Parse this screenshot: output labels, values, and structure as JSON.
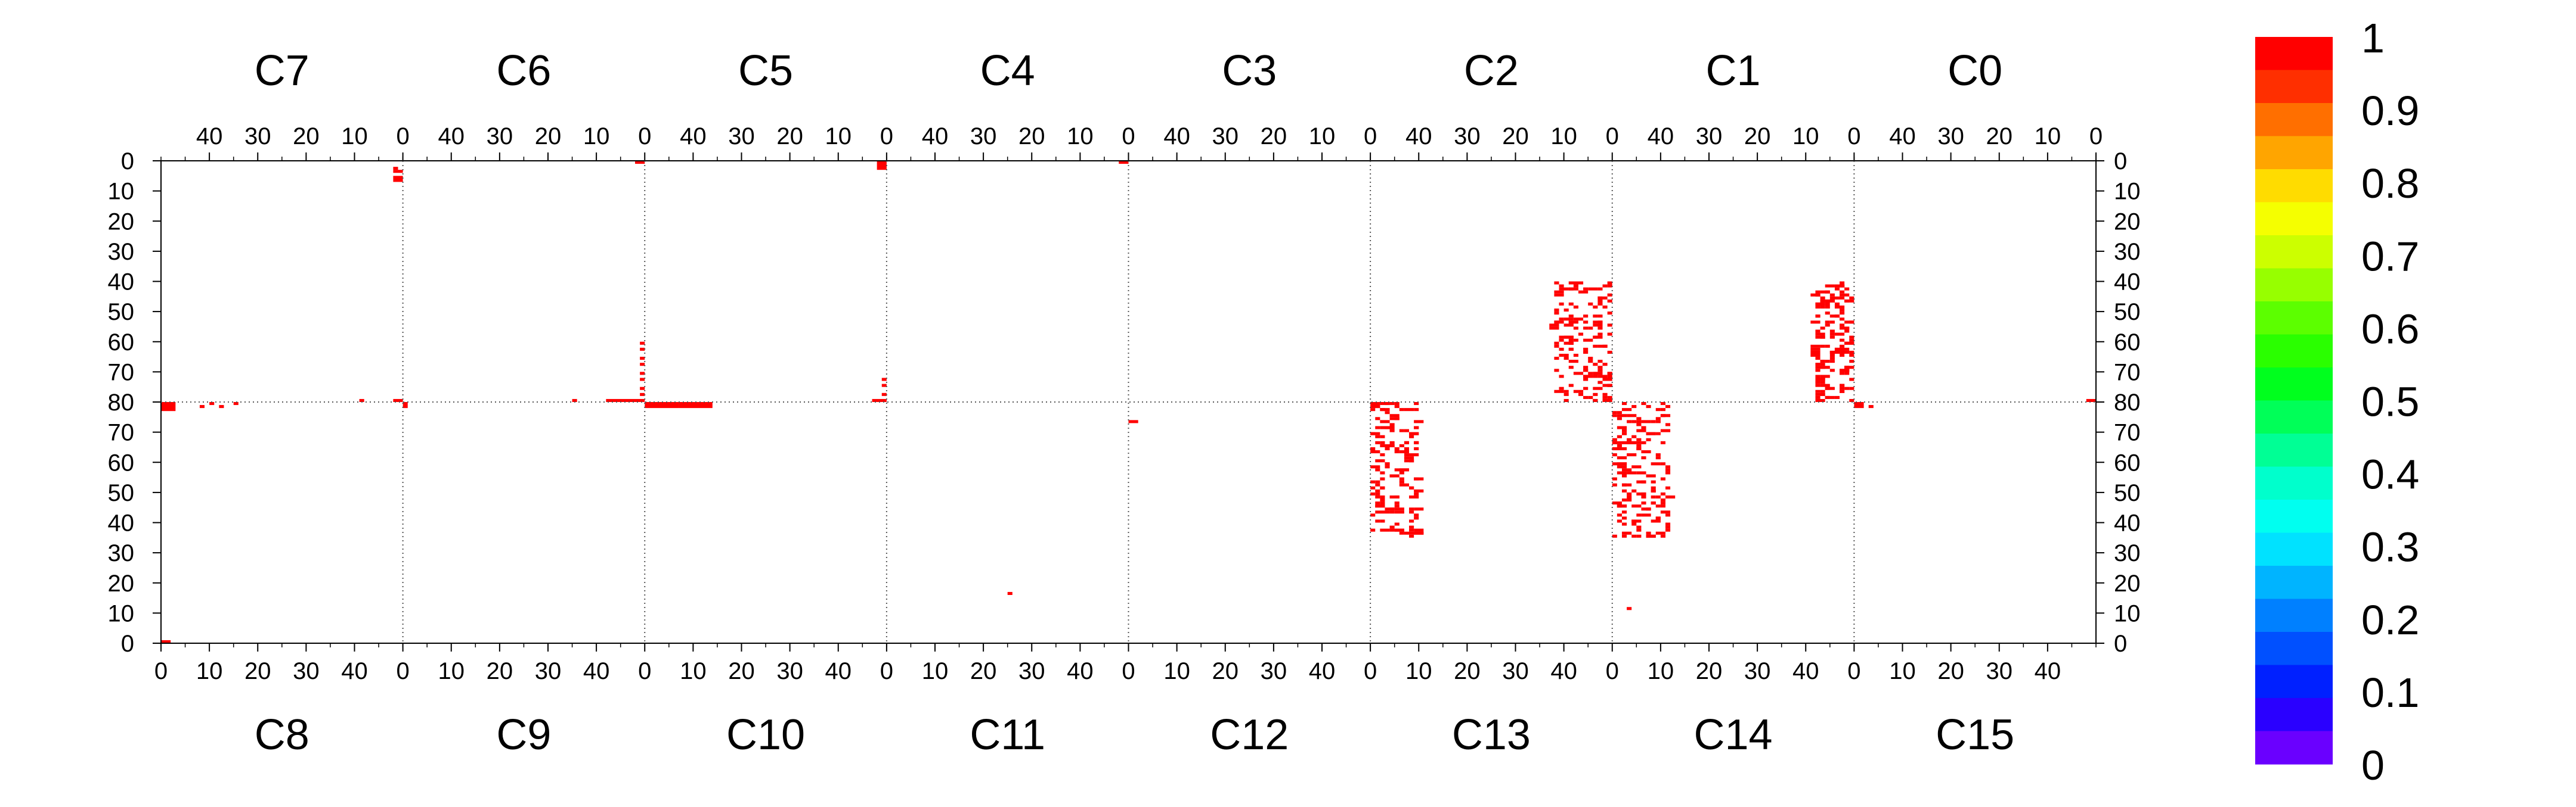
{
  "chart_data": {
    "type": "heatmap",
    "title": "",
    "xlabel": "",
    "ylabel": "",
    "grid": false,
    "top_panels": [
      "C7",
      "C6",
      "C5",
      "C4",
      "C3",
      "C2",
      "C1",
      "C0"
    ],
    "bottom_panels": [
      "C8",
      "C9",
      "C10",
      "C11",
      "C12",
      "C13",
      "C14",
      "C15"
    ],
    "x_range": [
      0,
      50
    ],
    "y_range_top": [
      0,
      80
    ],
    "y_range_bottom": [
      0,
      80
    ],
    "x_tick_labels_top": [
      "40",
      "30",
      "20",
      "10",
      "0"
    ],
    "x_tick_labels_bottom": [
      "0",
      "10",
      "20",
      "30",
      "40"
    ],
    "y_tick_labels_top": [
      "0",
      "10",
      "20",
      "30",
      "40",
      "50",
      "60",
      "70",
      "80"
    ],
    "y_tick_labels_bottom": [
      "80",
      "70",
      "60",
      "50",
      "40",
      "30",
      "20",
      "10",
      "0"
    ],
    "colorbar": {
      "min": 0,
      "max": 1,
      "tick_labels": [
        "1",
        "0.9",
        "0.8",
        "0.7",
        "0.6",
        "0.5",
        "0.4",
        "0.3",
        "0.2",
        "0.1",
        "0"
      ],
      "colors_top_to_bottom": [
        "#ff0000",
        "#ff2f00",
        "#ff6f00",
        "#ffa500",
        "#ffdc00",
        "#f5ff00",
        "#ccff00",
        "#97ff00",
        "#5cff00",
        "#2aff00",
        "#00ff1e",
        "#00ff58",
        "#00ff95",
        "#00ffcc",
        "#00fff0",
        "#00e2ff",
        "#00b4ff",
        "#0080ff",
        "#0050ff",
        "#0020ff",
        "#2a00ff",
        "#6a00ff"
      ]
    },
    "cells": [
      {
        "panel": "C7",
        "x": 1,
        "y": 2,
        "w": 1,
        "h": 1,
        "value": 1
      },
      {
        "panel": "C6",
        "x": 0,
        "y": 0,
        "w": 2,
        "h": 1,
        "value": 1
      },
      {
        "panel": "C7",
        "x": 0,
        "y": 3,
        "w": 2,
        "h": 1,
        "value": 1
      },
      {
        "panel": "C7",
        "x": 0,
        "y": 5,
        "w": 2,
        "h": 2,
        "value": 1
      },
      {
        "panel": "C5",
        "x": 0,
        "y": 0,
        "w": 2,
        "h": 3,
        "value": 1
      },
      {
        "panel": "C4",
        "x": 0,
        "y": 0,
        "w": 2,
        "h": 1,
        "value": 1
      },
      {
        "panel": "C6",
        "x": 0,
        "y": 60,
        "w": 1,
        "h": 1,
        "value": 1
      },
      {
        "panel": "C6",
        "x": 0,
        "y": 62,
        "w": 1,
        "h": 1,
        "value": 1
      },
      {
        "panel": "C6",
        "x": 0,
        "y": 65,
        "w": 1,
        "h": 1,
        "value": 1
      },
      {
        "panel": "C6",
        "x": 0,
        "y": 67,
        "w": 1,
        "h": 1,
        "value": 1
      },
      {
        "panel": "C6",
        "x": 0,
        "y": 70,
        "w": 1,
        "h": 1,
        "value": 1
      },
      {
        "panel": "C6",
        "x": 0,
        "y": 72,
        "w": 1,
        "h": 1,
        "value": 1
      },
      {
        "panel": "C6",
        "x": 0,
        "y": 75,
        "w": 1,
        "h": 1,
        "value": 1
      },
      {
        "panel": "C6",
        "x": 0,
        "y": 77,
        "w": 1,
        "h": 1,
        "value": 1
      },
      {
        "panel": "C6",
        "x": 0,
        "y": 79,
        "w": 8,
        "h": 1,
        "value": 1
      },
      {
        "panel": "C6",
        "x": 14,
        "y": 79,
        "w": 1,
        "h": 1,
        "value": 1
      },
      {
        "panel": "C7",
        "x": 0,
        "y": 79,
        "w": 2,
        "h": 1,
        "value": 1
      },
      {
        "panel": "C7",
        "x": 8,
        "y": 79,
        "w": 1,
        "h": 1,
        "value": 1
      },
      {
        "panel": "C9",
        "x": 0,
        "y": 78,
        "w": 1,
        "h": 2,
        "value": 1
      },
      {
        "panel": "C8",
        "x": 0,
        "y": 77,
        "w": 3,
        "h": 3,
        "value": 1
      },
      {
        "panel": "C8",
        "x": 8,
        "y": 78,
        "w": 1,
        "h": 1,
        "value": 1
      },
      {
        "panel": "C8",
        "x": 10,
        "y": 79,
        "w": 1,
        "h": 1,
        "value": 1
      },
      {
        "panel": "C8",
        "x": 12,
        "y": 78,
        "w": 1,
        "h": 1,
        "value": 1
      },
      {
        "panel": "C8",
        "x": 15,
        "y": 79,
        "w": 1,
        "h": 1,
        "value": 1
      },
      {
        "panel": "C5",
        "x": 0,
        "y": 72,
        "w": 1,
        "h": 1,
        "value": 1
      },
      {
        "panel": "C5",
        "x": 0,
        "y": 74,
        "w": 1,
        "h": 1,
        "value": 1
      },
      {
        "panel": "C5",
        "x": 0,
        "y": 77,
        "w": 1,
        "h": 1,
        "value": 1
      },
      {
        "panel": "C5",
        "x": 0,
        "y": 79,
        "w": 3,
        "h": 1,
        "value": 1
      },
      {
        "panel": "C10",
        "x": 0,
        "y": 78,
        "w": 7,
        "h": 2,
        "value": 1
      },
      {
        "panel": "C10",
        "x": 7,
        "y": 78,
        "w": 7,
        "h": 2,
        "value": 1
      },
      {
        "panel": "C12",
        "x": 0,
        "y": 73,
        "w": 2,
        "h": 1,
        "value": 1
      },
      {
        "panel": "C11",
        "x": 25,
        "y": 16,
        "w": 1,
        "h": 1,
        "value": 1
      },
      {
        "panel": "C2",
        "x": 0,
        "y": 79,
        "w": 2,
        "h": 1,
        "value": 1
      },
      {
        "panel": "C13",
        "x": 0,
        "y": 78,
        "w": 2,
        "h": 2,
        "value": 1
      },
      {
        "panel": "C13",
        "x": 5,
        "y": 79,
        "w": 1,
        "h": 1,
        "value": 1
      },
      {
        "panel": "C0",
        "x": 0,
        "y": 79,
        "w": 2,
        "h": 1,
        "value": 1
      },
      {
        "panel": "C15",
        "x": 0,
        "y": 78,
        "w": 2,
        "h": 2,
        "value": 1
      },
      {
        "panel": "C15",
        "x": 3,
        "y": 78,
        "w": 1,
        "h": 1,
        "value": 1
      },
      {
        "panel": "C8",
        "x": 0,
        "y": 0,
        "w": 2,
        "h": 1,
        "value": 1
      },
      {
        "panel": "C14",
        "x": 3,
        "y": 11,
        "w": 1,
        "h": 1,
        "value": 1
      }
    ],
    "scatter_cells": [
      {
        "panel": "C2",
        "x_range": [
          0,
          12
        ],
        "y_range": [
          40,
          80
        ],
        "count": 150,
        "value": 1
      },
      {
        "panel": "C1",
        "x_range": [
          0,
          8
        ],
        "y_range": [
          40,
          80
        ],
        "count": 150,
        "value": 1
      },
      {
        "panel": "C13",
        "x_range": [
          0,
          10
        ],
        "y_range": [
          35,
          80
        ],
        "count": 140,
        "value": 1
      },
      {
        "panel": "C14",
        "x_range": [
          0,
          12
        ],
        "y_range": [
          35,
          80
        ],
        "count": 160,
        "value": 1
      }
    ]
  }
}
